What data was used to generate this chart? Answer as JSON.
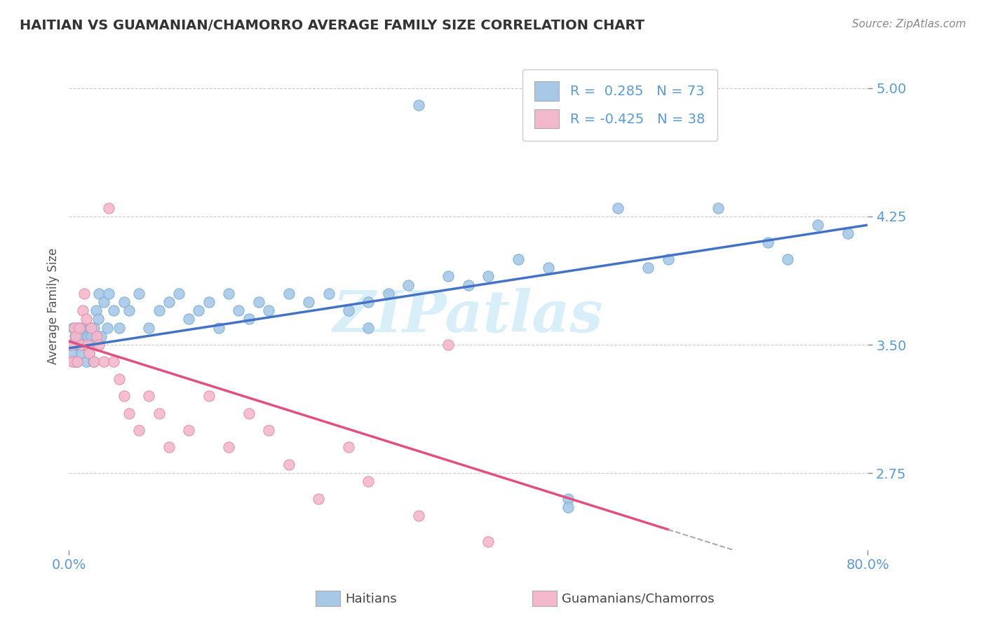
{
  "title": "HAITIAN VS GUAMANIAN/CHAMORRO AVERAGE FAMILY SIZE CORRELATION CHART",
  "source": "Source: ZipAtlas.com",
  "ylabel": "Average Family Size",
  "yticks": [
    2.75,
    3.5,
    4.25,
    5.0
  ],
  "xlim": [
    0.0,
    80.0
  ],
  "ylim": [
    2.3,
    5.15
  ],
  "series1_label": "Haitians",
  "series1_R": 0.285,
  "series1_N": 73,
  "series1_color": "#a8c8e8",
  "series1_edge": "#7aaed4",
  "series1_line_color": "#4472c4",
  "series2_label": "Guamanians/Chamorros",
  "series2_R": -0.425,
  "series2_N": 38,
  "series2_color": "#f4b8cc",
  "series2_edge": "#e090aa",
  "series2_line_color": "#e05080",
  "background_color": "#ffffff",
  "grid_color": "#cccccc",
  "title_color": "#333333",
  "axis_color": "#5b9bd5",
  "watermark_color": "#d8eef8",
  "series1_x": [
    0.2,
    0.3,
    0.4,
    0.5,
    0.6,
    0.7,
    0.8,
    0.9,
    1.0,
    1.1,
    1.2,
    1.3,
    1.4,
    1.5,
    1.6,
    1.7,
    1.8,
    1.9,
    2.0,
    2.1,
    2.2,
    2.3,
    2.4,
    2.5,
    2.7,
    2.9,
    3.0,
    3.2,
    3.5,
    3.8,
    4.0,
    4.5,
    5.0,
    5.5,
    6.0,
    7.0,
    8.0,
    9.0,
    10.0,
    11.0,
    12.0,
    13.0,
    14.0,
    15.0,
    16.0,
    17.0,
    18.0,
    19.0,
    20.0,
    22.0,
    24.0,
    26.0,
    28.0,
    30.0,
    32.0,
    34.0,
    35.0,
    38.0,
    40.0,
    42.0,
    45.0,
    48.0,
    50.0,
    55.0,
    58.0,
    60.0,
    65.0,
    70.0,
    72.0,
    75.0,
    78.0,
    30.0,
    50.0
  ],
  "series1_y": [
    3.5,
    3.45,
    3.6,
    3.4,
    3.55,
    3.5,
    3.4,
    3.6,
    3.55,
    3.5,
    3.45,
    3.6,
    3.5,
    3.55,
    3.6,
    3.4,
    3.5,
    3.55,
    3.45,
    3.6,
    3.55,
    3.5,
    3.4,
    3.6,
    3.7,
    3.65,
    3.8,
    3.55,
    3.75,
    3.6,
    3.8,
    3.7,
    3.6,
    3.75,
    3.7,
    3.8,
    3.6,
    3.7,
    3.75,
    3.8,
    3.65,
    3.7,
    3.75,
    3.6,
    3.8,
    3.7,
    3.65,
    3.75,
    3.7,
    3.8,
    3.75,
    3.8,
    3.7,
    3.75,
    3.8,
    3.85,
    4.9,
    3.9,
    3.85,
    3.9,
    4.0,
    3.95,
    2.6,
    4.3,
    3.95,
    4.0,
    4.3,
    4.1,
    4.0,
    4.2,
    4.15,
    3.6,
    2.55
  ],
  "series2_x": [
    0.2,
    0.3,
    0.5,
    0.7,
    0.8,
    1.0,
    1.2,
    1.4,
    1.5,
    1.7,
    1.9,
    2.0,
    2.2,
    2.5,
    2.8,
    3.0,
    3.5,
    4.0,
    4.5,
    5.0,
    5.5,
    6.0,
    7.0,
    8.0,
    9.0,
    10.0,
    12.0,
    14.0,
    16.0,
    18.0,
    20.0,
    22.0,
    25.0,
    28.0,
    30.0,
    35.0,
    38.0,
    42.0
  ],
  "series2_y": [
    3.5,
    3.4,
    3.6,
    3.55,
    3.4,
    3.6,
    3.5,
    3.7,
    3.8,
    3.65,
    3.5,
    3.45,
    3.6,
    3.4,
    3.55,
    3.5,
    3.4,
    4.3,
    3.4,
    3.3,
    3.2,
    3.1,
    3.0,
    3.2,
    3.1,
    2.9,
    3.0,
    3.2,
    2.9,
    3.1,
    3.0,
    2.8,
    2.6,
    2.9,
    2.7,
    2.5,
    3.5,
    2.35
  ],
  "trend1_x0": 0,
  "trend1_y0": 3.48,
  "trend1_x1": 80,
  "trend1_y1": 4.2,
  "trend2_x0": 0,
  "trend2_y0": 3.52,
  "trend2_x1": 60,
  "trend2_y1": 2.42,
  "trend2_dash_x0": 60,
  "trend2_dash_x1": 80
}
